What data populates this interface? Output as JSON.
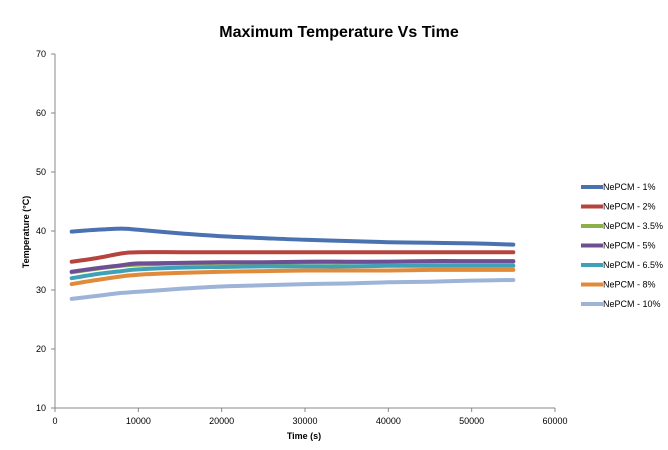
{
  "chart_data": {
    "type": "line",
    "title": "Maximum Temperature Vs Time",
    "xlabel": "Time (s)",
    "ylabel": "Temperature (°C)",
    "xlim": [
      0,
      60000
    ],
    "ylim": [
      10,
      70
    ],
    "x_ticks": [
      0,
      10000,
      20000,
      30000,
      40000,
      50000,
      60000
    ],
    "y_ticks": [
      10,
      20,
      30,
      40,
      50,
      60,
      70
    ],
    "grid": false,
    "legend_position": "right",
    "series": [
      {
        "name": "NePCM - 1%",
        "color": "#4a72b0",
        "points": [
          [
            2000,
            39.9
          ],
          [
            5000,
            40.2
          ],
          [
            8000,
            40.4
          ],
          [
            10000,
            40.2
          ],
          [
            15000,
            39.6
          ],
          [
            20000,
            39.1
          ],
          [
            25000,
            38.8
          ],
          [
            30000,
            38.5
          ],
          [
            35000,
            38.3
          ],
          [
            40000,
            38.1
          ],
          [
            45000,
            38.0
          ],
          [
            50000,
            37.9
          ],
          [
            55000,
            37.7
          ]
        ]
      },
      {
        "name": "NePCM - 2%",
        "color": "#b5433e",
        "points": [
          [
            2000,
            34.8
          ],
          [
            5000,
            35.4
          ],
          [
            8000,
            36.2
          ],
          [
            10000,
            36.4
          ],
          [
            15000,
            36.4
          ],
          [
            20000,
            36.4
          ],
          [
            25000,
            36.4
          ],
          [
            30000,
            36.4
          ],
          [
            35000,
            36.4
          ],
          [
            40000,
            36.4
          ],
          [
            45000,
            36.4
          ],
          [
            50000,
            36.4
          ],
          [
            55000,
            36.4
          ]
        ]
      },
      {
        "name": "NePCM - 3.5%",
        "color": "#8bb04a",
        "points": [
          [
            2000,
            33.0
          ],
          [
            5000,
            33.6
          ],
          [
            8000,
            34.1
          ],
          [
            10000,
            34.3
          ],
          [
            15000,
            34.5
          ],
          [
            20000,
            34.6
          ],
          [
            25000,
            34.6
          ],
          [
            30000,
            34.7
          ],
          [
            35000,
            34.7
          ],
          [
            40000,
            34.8
          ],
          [
            45000,
            34.8
          ],
          [
            50000,
            34.8
          ],
          [
            55000,
            34.8
          ]
        ]
      },
      {
        "name": "NePCM - 5%",
        "color": "#6f4f93",
        "points": [
          [
            2000,
            33.1
          ],
          [
            5000,
            33.7
          ],
          [
            8000,
            34.2
          ],
          [
            10000,
            34.5
          ],
          [
            15000,
            34.6
          ],
          [
            20000,
            34.7
          ],
          [
            25000,
            34.7
          ],
          [
            30000,
            34.8
          ],
          [
            35000,
            34.8
          ],
          [
            40000,
            34.8
          ],
          [
            45000,
            34.9
          ],
          [
            50000,
            34.9
          ],
          [
            55000,
            34.9
          ]
        ]
      },
      {
        "name": "NePCM - 6.5%",
        "color": "#3fa1b5",
        "points": [
          [
            2000,
            32.0
          ],
          [
            5000,
            32.7
          ],
          [
            8000,
            33.2
          ],
          [
            10000,
            33.5
          ],
          [
            15000,
            33.8
          ],
          [
            20000,
            33.9
          ],
          [
            25000,
            34.0
          ],
          [
            30000,
            34.0
          ],
          [
            35000,
            34.0
          ],
          [
            40000,
            34.1
          ],
          [
            45000,
            34.1
          ],
          [
            50000,
            34.1
          ],
          [
            55000,
            34.1
          ]
        ]
      },
      {
        "name": "NePCM - 8%",
        "color": "#e08a3a",
        "points": [
          [
            2000,
            31.0
          ],
          [
            5000,
            31.7
          ],
          [
            8000,
            32.3
          ],
          [
            10000,
            32.6
          ],
          [
            15000,
            32.9
          ],
          [
            20000,
            33.1
          ],
          [
            25000,
            33.2
          ],
          [
            30000,
            33.3
          ],
          [
            35000,
            33.3
          ],
          [
            40000,
            33.3
          ],
          [
            45000,
            33.4
          ],
          [
            50000,
            33.4
          ],
          [
            55000,
            33.4
          ]
        ]
      },
      {
        "name": "NePCM - 10%",
        "color": "#9db4d8",
        "points": [
          [
            2000,
            28.5
          ],
          [
            5000,
            29.0
          ],
          [
            8000,
            29.5
          ],
          [
            10000,
            29.7
          ],
          [
            15000,
            30.2
          ],
          [
            20000,
            30.6
          ],
          [
            25000,
            30.8
          ],
          [
            30000,
            31.0
          ],
          [
            35000,
            31.1
          ],
          [
            40000,
            31.3
          ],
          [
            45000,
            31.4
          ],
          [
            50000,
            31.6
          ],
          [
            55000,
            31.7
          ]
        ]
      }
    ]
  }
}
